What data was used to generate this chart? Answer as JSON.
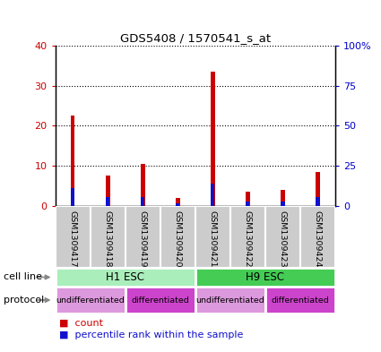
{
  "title": "GDS5408 / 1570541_s_at",
  "samples": [
    "GSM1309417",
    "GSM1309418",
    "GSM1309419",
    "GSM1309420",
    "GSM1309421",
    "GSM1309422",
    "GSM1309423",
    "GSM1309424"
  ],
  "count_values": [
    22.5,
    7.5,
    10.5,
    2.0,
    33.5,
    3.5,
    4.0,
    8.5
  ],
  "percentile_values": [
    11.0,
    5.5,
    5.5,
    1.5,
    14.0,
    3.0,
    2.5,
    5.5
  ],
  "ylim_left": [
    0,
    40
  ],
  "ylim_right": [
    0,
    100
  ],
  "yticks_left": [
    0,
    10,
    20,
    30,
    40
  ],
  "yticks_right": [
    0,
    25,
    50,
    75,
    100
  ],
  "ytick_labels_right": [
    "0",
    "25",
    "50",
    "75",
    "100%"
  ],
  "bar_color_red": "#cc0000",
  "bar_color_blue": "#1111cc",
  "cell_line_groups": [
    {
      "label": "H1 ESC",
      "start": 0,
      "end": 4,
      "color": "#aaeebb"
    },
    {
      "label": "H9 ESC",
      "start": 4,
      "end": 8,
      "color": "#44cc55"
    }
  ],
  "protocol_groups": [
    {
      "label": "undifferentiated",
      "start": 0,
      "end": 2,
      "color": "#dd99dd"
    },
    {
      "label": "differentiated",
      "start": 2,
      "end": 4,
      "color": "#cc44cc"
    },
    {
      "label": "undifferentiated",
      "start": 4,
      "end": 6,
      "color": "#dd99dd"
    },
    {
      "label": "differentiated",
      "start": 6,
      "end": 8,
      "color": "#cc44cc"
    }
  ],
  "left_axis_color": "#cc0000",
  "right_axis_color": "#0000cc",
  "sample_box_color": "#cccccc",
  "cell_line_label": "cell line",
  "protocol_label": "protocol",
  "bar_width": 0.12
}
